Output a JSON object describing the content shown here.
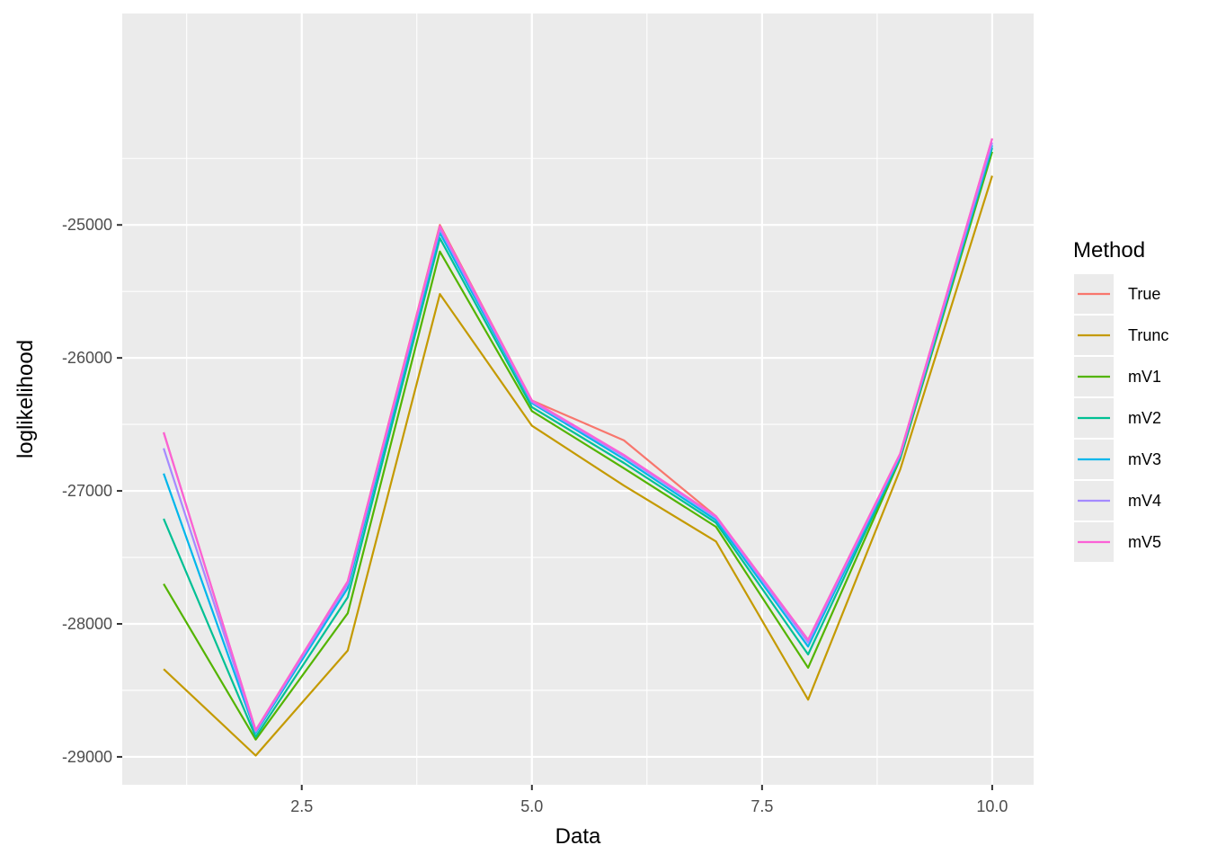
{
  "chart_data": {
    "type": "line",
    "xlabel": "Data",
    "ylabel": "loglikelihood",
    "xlim": [
      0.55,
      10.45
    ],
    "ylim": [
      -29210,
      -23410
    ],
    "x": [
      1,
      2,
      3,
      4,
      5,
      6,
      7,
      8,
      9,
      10
    ],
    "x_ticks": [
      2.5,
      5.0,
      7.5,
      10.0
    ],
    "x_tick_labels": [
      "2.5",
      "5.0",
      "7.5",
      "10.0"
    ],
    "y_ticks": [
      -25000,
      -26000,
      -27000,
      -28000,
      -29000
    ],
    "y_tick_labels": [
      "-25000",
      "-26000",
      "-27000",
      "-28000",
      "-29000"
    ],
    "grid": true,
    "legend": {
      "title": "Method",
      "position": "right"
    },
    "series": [
      {
        "name": "True",
        "color": "#F8766D",
        "values": [
          -26560,
          -28800,
          -27680,
          -25000,
          -26320,
          -26620,
          -27190,
          -28120,
          -26720,
          -24350
        ]
      },
      {
        "name": "Trunc",
        "color": "#C49A00",
        "values": [
          -28340,
          -28990,
          -28200,
          -25520,
          -26510,
          -26960,
          -27380,
          -28570,
          -26840,
          -24630
        ]
      },
      {
        "name": "mV1",
        "color": "#53B400",
        "values": [
          -27700,
          -28870,
          -27920,
          -25200,
          -26400,
          -26830,
          -27270,
          -28330,
          -26760,
          -24450
        ]
      },
      {
        "name": "mV2",
        "color": "#00C094",
        "values": [
          -27210,
          -28850,
          -27800,
          -25100,
          -26370,
          -26790,
          -27240,
          -28230,
          -26750,
          -24420
        ]
      },
      {
        "name": "mV3",
        "color": "#00B6EB",
        "values": [
          -26870,
          -28820,
          -27730,
          -25060,
          -26340,
          -26760,
          -27220,
          -28170,
          -26740,
          -24400
        ]
      },
      {
        "name": "mV4",
        "color": "#A58AFF",
        "values": [
          -26680,
          -28810,
          -27700,
          -25030,
          -26330,
          -26740,
          -27200,
          -28140,
          -26730,
          -24380
        ]
      },
      {
        "name": "mV5",
        "color": "#FB61D7",
        "values": [
          -26560,
          -28800,
          -27680,
          -25010,
          -26320,
          -26730,
          -27190,
          -28120,
          -26720,
          -24350
        ]
      }
    ]
  }
}
